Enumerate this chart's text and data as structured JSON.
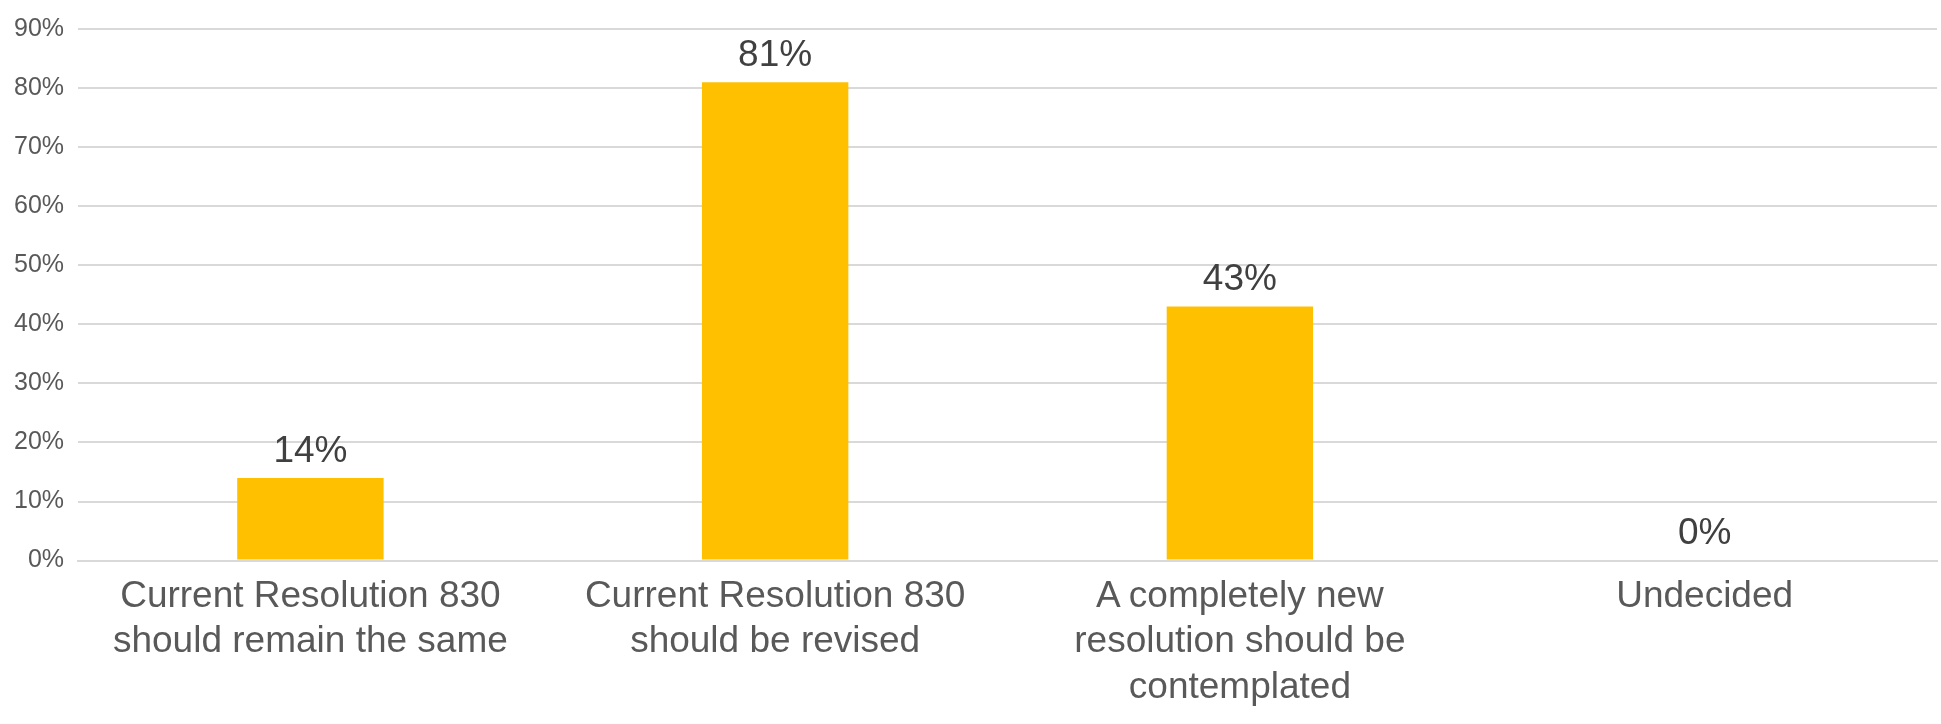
{
  "chart_data": {
    "type": "bar",
    "categories": [
      "Current Resolution 830 should remain the same",
      "Current Resolution 830 should be revised",
      "A completely new resolution should be contemplated",
      "Undecided"
    ],
    "values": [
      14,
      81,
      43,
      0
    ],
    "color": "#ffc000",
    "ylim": [
      0,
      90
    ],
    "yticks": [
      {
        "value": 0,
        "label": "0%"
      },
      {
        "value": 10,
        "label": "10%"
      },
      {
        "value": 20,
        "label": "20%"
      },
      {
        "value": 30,
        "label": "30%"
      },
      {
        "value": 40,
        "label": "40%"
      },
      {
        "value": 50,
        "label": "50%"
      },
      {
        "value": 60,
        "label": "60%"
      },
      {
        "value": 70,
        "label": "70%"
      },
      {
        "value": 80,
        "label": "80%"
      },
      {
        "value": 90,
        "label": "90%"
      }
    ],
    "value_labels": [
      "14%",
      "81%",
      "43%",
      "0%"
    ],
    "grid": "y",
    "legend": false
  }
}
